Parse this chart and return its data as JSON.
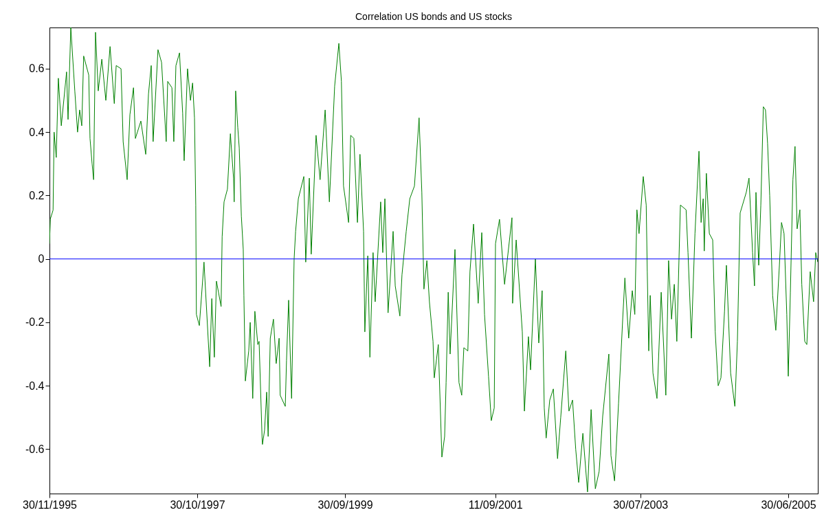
{
  "chart_data": {
    "type": "line",
    "title": "Correlation US bonds and US stocks",
    "x": [
      "1995-11-30",
      "1995-12-04",
      "1995-12-17",
      "1995-12-22",
      "1996-01-01",
      "1996-01-11",
      "1996-01-25",
      "1996-02-19",
      "1996-02-26",
      "1996-03-10",
      "1996-03-29",
      "1996-04-11",
      "1996-04-21",
      "1996-05-01",
      "1996-05-10",
      "1996-06-03",
      "1996-06-09",
      "1996-06-19",
      "1996-06-26",
      "1996-07-05",
      "1996-07-18",
      "1996-08-04",
      "1996-08-23",
      "1996-09-12",
      "1996-10-02",
      "1996-10-11",
      "1996-11-03",
      "1996-11-13",
      "1996-12-02",
      "1996-12-15",
      "1997-01-01",
      "1997-01-10",
      "1997-02-05",
      "1997-02-28",
      "1997-03-13",
      "1997-03-26",
      "1997-04-04",
      "1997-04-27",
      "1997-05-14",
      "1997-06-05",
      "1997-06-12",
      "1997-07-02",
      "1997-07-11",
      "1997-07-21",
      "1997-08-07",
      "1997-08-22",
      "1997-08-29",
      "1997-09-14",
      "1997-09-28",
      "1997-10-08",
      "1997-10-17",
      "1997-10-23",
      "1997-10-26",
      "1997-11-09",
      "1997-12-01",
      "1997-12-28",
      "1998-01-07",
      "1998-01-19",
      "1998-01-29",
      "1998-02-20",
      "1998-02-25",
      "1998-03-06",
      "1998-03-22",
      "1998-04-05",
      "1998-04-20",
      "1998-04-23",
      "1998-04-30",
      "1998-05-10",
      "1998-05-17",
      "1998-05-27",
      "1998-06-05",
      "1998-06-08",
      "1998-06-15",
      "1998-07-01",
      "1998-07-08",
      "1998-07-20",
      "1998-07-30",
      "1998-08-13",
      "1998-08-19",
      "1998-09-02",
      "1998-09-04",
      "1998-09-14",
      "1998-09-24",
      "1998-10-01",
      "1998-10-11",
      "1998-10-26",
      "1998-11-08",
      "1998-11-22",
      "1998-11-27",
      "1998-12-21",
      "1998-12-27",
      "1999-01-06",
      "1999-01-20",
      "1999-02-01",
      "1999-02-08",
      "1999-02-21",
      "1999-03-19",
      "1999-03-28",
      "1999-04-14",
      "1999-04-23",
      "1999-05-16",
      "1999-06-04",
      "1999-06-28",
      "1999-07-18",
      "1999-08-12",
      "1999-09-01",
      "1999-09-13",
      "1999-09-23",
      "1999-10-17",
      "1999-10-27",
      "1999-11-11",
      "1999-11-28",
      "1999-12-10",
      "1999-12-27",
      "2000-01-02",
      "2000-01-16",
      "2000-01-26",
      "2000-02-10",
      "2000-02-20",
      "2000-03-17",
      "2000-03-27",
      "2000-04-06",
      "2000-04-21",
      "2000-05-15",
      "2000-05-25",
      "2000-06-16",
      "2000-06-26",
      "2000-07-16",
      "2000-08-02",
      "2000-08-24",
      "2000-09-15",
      "2000-09-28",
      "2000-10-08",
      "2000-10-22",
      "2000-11-03",
      "2000-11-20",
      "2000-11-26",
      "2000-12-15",
      "2001-01-01",
      "2001-01-14",
      "2001-01-21",
      "2001-01-31",
      "2001-02-09",
      "2001-03-04",
      "2001-03-23",
      "2001-04-05",
      "2001-04-15",
      "2001-05-04",
      "2001-05-14",
      "2001-05-31",
      "2001-06-22",
      "2001-07-09",
      "2001-07-22",
      "2001-08-10",
      "2001-08-23",
      "2001-09-06",
      "2001-09-12",
      "2001-10-01",
      "2001-10-25",
      "2001-11-29",
      "2001-12-02",
      "2001-12-19",
      "2002-01-17",
      "2002-01-27",
      "2002-02-15",
      "2002-02-25",
      "2002-03-20",
      "2002-04-05",
      "2002-04-21",
      "2002-05-01",
      "2002-05-10",
      "2002-05-27",
      "2002-06-13",
      "2002-07-03",
      "2002-07-18",
      "2002-08-11",
      "2002-08-26",
      "2002-09-12",
      "2002-09-27",
      "2002-10-11",
      "2002-10-31",
      "2002-11-22",
      "2002-12-09",
      "2002-12-29",
      "2003-01-16",
      "2003-02-02",
      "2003-03-03",
      "2003-03-13",
      "2003-03-30",
      "2003-04-18",
      "2003-05-08",
      "2003-05-18",
      "2003-06-05",
      "2003-06-22",
      "2003-07-04",
      "2003-07-14",
      "2003-07-24",
      "2003-08-13",
      "2003-08-27",
      "2003-09-01",
      "2003-09-08",
      "2003-09-15",
      "2003-09-28",
      "2003-10-17",
      "2003-11-06",
      "2003-11-28",
      "2003-12-11",
      "2003-12-25",
      "2004-01-07",
      "2004-01-19",
      "2004-02-05",
      "2004-03-03",
      "2004-03-12",
      "2004-03-28",
      "2004-04-14",
      "2004-05-03",
      "2004-05-13",
      "2004-05-23",
      "2004-05-28",
      "2004-06-07",
      "2004-06-21",
      "2004-07-07",
      "2004-07-19",
      "2004-08-02",
      "2004-08-15",
      "2004-09-01",
      "2004-09-10",
      "2004-09-30",
      "2004-10-20",
      "2004-11-01",
      "2004-11-14",
      "2004-12-13",
      "2004-12-26",
      "2005-01-12",
      "2005-01-21",
      "2005-01-28",
      "2005-02-10",
      "2005-02-20",
      "2005-03-04",
      "2005-03-14",
      "2005-03-24",
      "2005-04-03",
      "2005-04-17",
      "2005-05-02",
      "2005-05-19",
      "2005-05-29",
      "2005-06-10",
      "2005-06-23",
      "2005-06-30",
      "2005-07-10",
      "2005-07-22",
      "2005-08-01",
      "2005-08-11",
      "2005-08-24",
      "2005-09-02",
      "2005-09-16",
      "2005-09-26",
      "2005-10-12",
      "2005-10-28",
      "2005-11-07",
      "2005-11-17"
    ],
    "series": [
      {
        "color": "#008000",
        "values": [
          0.048,
          0.126,
          0.154,
          0.4,
          0.32,
          0.57,
          0.42,
          0.59,
          0.44,
          0.73,
          0.53,
          0.4,
          0.47,
          0.42,
          0.64,
          0.58,
          0.38,
          0.3,
          0.25,
          0.715,
          0.53,
          0.63,
          0.5,
          0.67,
          0.49,
          0.61,
          0.6,
          0.37,
          0.25,
          0.455,
          0.54,
          0.38,
          0.435,
          0.33,
          0.52,
          0.61,
          0.37,
          0.66,
          0.62,
          0.37,
          0.56,
          0.54,
          0.37,
          0.61,
          0.65,
          0.46,
          0.31,
          0.6,
          0.5,
          0.555,
          0.445,
          0.17,
          -0.175,
          -0.21,
          -0.01,
          -0.34,
          -0.125,
          -0.31,
          -0.07,
          -0.15,
          0.07,
          0.18,
          0.22,
          0.395,
          0.255,
          0.18,
          0.53,
          0.415,
          0.35,
          0.135,
          0.03,
          -0.115,
          -0.385,
          -0.29,
          -0.2,
          -0.44,
          -0.165,
          -0.27,
          -0.26,
          -0.56,
          -0.585,
          -0.54,
          -0.42,
          -0.56,
          -0.25,
          -0.19,
          -0.33,
          -0.25,
          -0.43,
          -0.465,
          -0.32,
          -0.13,
          -0.44,
          0.0,
          0.087,
          0.19,
          0.26,
          -0.01,
          0.255,
          0.015,
          0.39,
          0.25,
          0.47,
          0.18,
          0.545,
          0.68,
          0.56,
          0.23,
          0.115,
          0.39,
          0.38,
          0.115,
          0.33,
          0.087,
          -0.23,
          0.01,
          -0.31,
          0.02,
          -0.135,
          0.18,
          0.02,
          0.19,
          -0.17,
          0.087,
          -0.085,
          -0.18,
          -0.05,
          0.087,
          0.19,
          0.23,
          0.445,
          0.21,
          -0.095,
          -0.005,
          -0.135,
          -0.26,
          -0.375,
          -0.27,
          -0.625,
          -0.56,
          -0.39,
          -0.105,
          -0.3,
          0.03,
          -0.39,
          -0.43,
          -0.28,
          -0.29,
          -0.04,
          0.11,
          -0.14,
          0.083,
          -0.175,
          -0.37,
          -0.51,
          -0.47,
          0.048,
          0.125,
          -0.08,
          0.13,
          -0.14,
          0.06,
          -0.23,
          -0.48,
          -0.245,
          -0.35,
          0.0,
          -0.265,
          -0.1,
          -0.47,
          -0.565,
          -0.445,
          -0.41,
          -0.63,
          -0.5,
          -0.29,
          -0.48,
          -0.445,
          -0.6,
          -0.705,
          -0.55,
          -0.735,
          -0.475,
          -0.725,
          -0.67,
          -0.495,
          -0.3,
          -0.62,
          -0.7,
          -0.455,
          -0.185,
          -0.06,
          -0.25,
          -0.1,
          -0.175,
          0.155,
          0.08,
          0.26,
          0.17,
          -0.04,
          -0.29,
          -0.115,
          -0.36,
          -0.44,
          -0.105,
          -0.43,
          -0.005,
          -0.19,
          -0.08,
          -0.26,
          0.17,
          0.155,
          0.02,
          -0.25,
          0.08,
          0.34,
          0.115,
          0.19,
          0.025,
          0.27,
          0.08,
          0.06,
          -0.23,
          -0.4,
          -0.375,
          -0.165,
          -0.02,
          -0.36,
          -0.465,
          -0.26,
          0.145,
          0.21,
          0.255,
          0.02,
          -0.085,
          0.21,
          -0.02,
          0.17,
          0.48,
          0.47,
          0.365,
          0.2,
          -0.115,
          -0.225,
          -0.02,
          0.115,
          0.08,
          -0.175,
          -0.37,
          -0.105,
          0.25,
          0.355,
          0.095,
          0.155,
          -0.08,
          -0.26,
          -0.27,
          -0.04,
          -0.135,
          0.02,
          -0.01
        ]
      }
    ],
    "xlim": [
      "1995-11-30",
      "2005-11-17"
    ],
    "xticks": [
      {
        "value": "1995-11-30",
        "label": "30/11/1995"
      },
      {
        "value": "1997-10-30",
        "label": "30/10/1997"
      },
      {
        "value": "1999-09-30",
        "label": "30/09/1999"
      },
      {
        "value": "2001-09-11",
        "label": "11/09/2001"
      },
      {
        "value": "2003-07-30",
        "label": "30/07/2003"
      },
      {
        "value": "2005-06-30",
        "label": "30/06/2005"
      }
    ],
    "ylim": [
      -0.74,
      0.73
    ],
    "yticks": [
      -0.6,
      -0.4,
      -0.2,
      {
        "value": 0,
        "label": "0"
      },
      0.2,
      0.4,
      0.6
    ],
    "ref_lines": [
      {
        "axis": "y",
        "value": 0,
        "color": "#0000ff"
      }
    ]
  }
}
